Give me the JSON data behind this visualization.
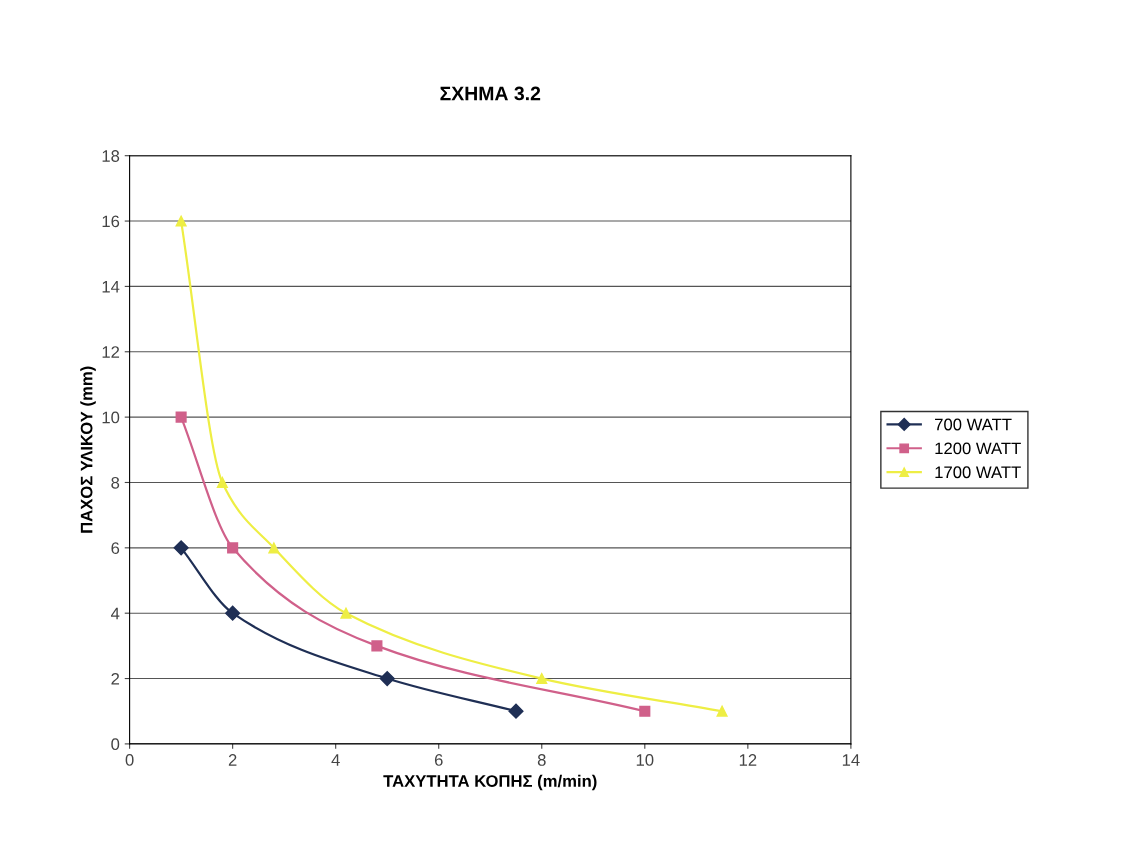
{
  "chart_data": {
    "type": "line",
    "title": "ΣΧΗΜΑ 3.2",
    "xlabel": "ΤΑΧΥΤΗΤΑ ΚΟΠΗΣ (m/min)",
    "ylabel": "ΠΑΧΟΣ ΥΛΙΚΟΥ (mm)",
    "xlim": [
      0,
      14
    ],
    "xticks": [
      0,
      2,
      4,
      6,
      8,
      10,
      12,
      14
    ],
    "ylim": [
      0,
      18
    ],
    "yticks": [
      0,
      2,
      4,
      6,
      8,
      10,
      12,
      14,
      16,
      18
    ],
    "grid": "y",
    "legend": "right",
    "line_style": "solid",
    "series": [
      {
        "name": "700 WATT",
        "color": "#1f2f55",
        "marker": "diamond",
        "x": [
          1,
          2,
          5,
          7.5
        ],
        "values": [
          6,
          4,
          2,
          1
        ]
      },
      {
        "name": "1200 WATT",
        "color": "#d0608a",
        "marker": "square",
        "x": [
          1,
          2,
          4.8,
          10
        ],
        "values": [
          10,
          6,
          3,
          1
        ]
      },
      {
        "name": "1700 WATT",
        "color": "#eeee44",
        "marker": "triangle",
        "x": [
          1,
          1.8,
          2.8,
          4.2,
          8,
          11.5
        ],
        "values": [
          16,
          8,
          6,
          4,
          2,
          1
        ]
      }
    ]
  }
}
